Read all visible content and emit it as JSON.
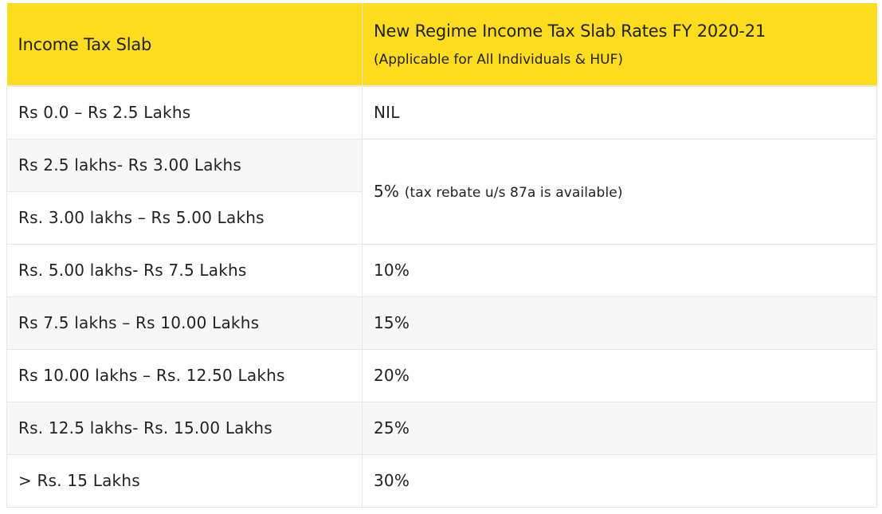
{
  "table": {
    "headers": {
      "slab": "Income Tax Slab",
      "rate_title": "New Regime Income Tax Slab Rates FY 2020-21",
      "rate_subtitle": "(Applicable for All Individuals & HUF)"
    },
    "rows": [
      {
        "slab": "Rs 0.0 – Rs 2.5 Lakhs",
        "rate": "NIL",
        "note": ""
      },
      {
        "slab": "Rs 2.5 lakhs- Rs 3.00 Lakhs",
        "rate": "5%",
        "note": "(tax rebate u/s 87a is available)"
      },
      {
        "slab": "Rs. 3.00 lakhs – Rs 5.00 Lakhs"
      },
      {
        "slab": "Rs. 5.00 lakhs- Rs 7.5 Lakhs",
        "rate": "10%"
      },
      {
        "slab": "Rs 7.5 lakhs – Rs 10.00 Lakhs",
        "rate": "15%"
      },
      {
        "slab": "Rs 10.00 lakhs – Rs. 12.50 Lakhs",
        "rate": "20%"
      },
      {
        "slab": "Rs. 12.5 lakhs- Rs. 15.00 Lakhs",
        "rate": "25%"
      },
      {
        "slab": "> Rs. 15 Lakhs",
        "rate": "30%"
      }
    ]
  },
  "colors": {
    "header_background": "#fedd1e",
    "alt_row_background": "#f7f7f7",
    "border": "#e6e6e6"
  }
}
